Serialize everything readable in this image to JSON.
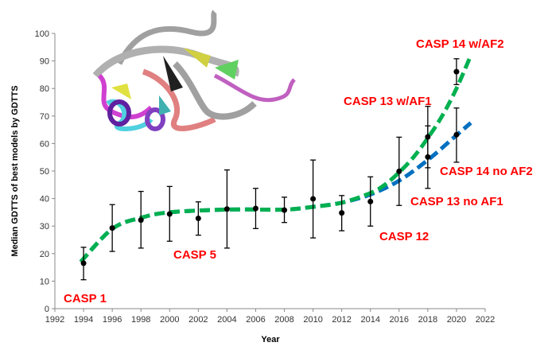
{
  "chart_data": {
    "type": "scatter",
    "title": "",
    "xlabel": "Year",
    "ylabel": "Median GDTTS of best models by GDTTS",
    "xlim": [
      1992,
      2022
    ],
    "ylim": [
      0,
      100
    ],
    "xticks": [
      1992,
      1994,
      1996,
      1998,
      2000,
      2002,
      2004,
      2006,
      2008,
      2010,
      2012,
      2014,
      2016,
      2018,
      2020,
      2022
    ],
    "yticks": [
      0,
      10,
      20,
      30,
      40,
      50,
      60,
      70,
      80,
      90,
      100
    ],
    "grid": false,
    "points": [
      {
        "x": 1994,
        "y": 16.5,
        "low": 10.5,
        "high": 22.3
      },
      {
        "x": 1996,
        "y": 29.3,
        "low": 20.8,
        "high": 37.8
      },
      {
        "x": 1998,
        "y": 32.2,
        "low": 22.0,
        "high": 42.6
      },
      {
        "x": 2000,
        "y": 34.4,
        "low": 24.5,
        "high": 44.4
      },
      {
        "x": 2002,
        "y": 32.8,
        "low": 26.7,
        "high": 38.8
      },
      {
        "x": 2004,
        "y": 36.2,
        "low": 22.0,
        "high": 50.4
      },
      {
        "x": 2006,
        "y": 36.4,
        "low": 29.1,
        "high": 43.7
      },
      {
        "x": 2008,
        "y": 35.8,
        "low": 31.3,
        "high": 40.5
      },
      {
        "x": 2010,
        "y": 39.9,
        "low": 25.7,
        "high": 54.0
      },
      {
        "x": 2012,
        "y": 34.8,
        "low": 28.3,
        "high": 41.1
      },
      {
        "x": 2014,
        "y": 38.9,
        "low": 30.0,
        "high": 47.9
      },
      {
        "x": 2016,
        "y": 49.9,
        "low": 37.5,
        "high": 62.3
      },
      {
        "x": 2018,
        "y": 62.4,
        "low": 51.2,
        "high": 73.5
      },
      {
        "x": 2018,
        "y": 55.1,
        "low": 43.7,
        "high": 66.4
      },
      {
        "x": 2020,
        "y": 86.1,
        "low": 81.4,
        "high": 90.8
      },
      {
        "x": 2020,
        "y": 63.2,
        "low": 53.2,
        "high": 72.9
      }
    ],
    "trendlines": [
      {
        "color": "#0070c0",
        "style": "dashed",
        "x": [
          1993.8,
          1996,
          1998,
          2000,
          2004,
          2008,
          2010,
          2012,
          2014,
          2016,
          2018,
          2020,
          2021
        ],
        "y": [
          17,
          29,
          33,
          35,
          36,
          36,
          37,
          38.5,
          41.5,
          46.5,
          54,
          63,
          67.5
        ]
      },
      {
        "color": "#00b050",
        "style": "dashed",
        "x": [
          1993.8,
          1996,
          1998,
          2000,
          2004,
          2008,
          2010,
          2012,
          2014,
          2015,
          2016,
          2017,
          2018,
          2019,
          2020,
          2021
        ],
        "y": [
          17,
          29,
          33,
          35,
          36,
          36,
          37,
          38.5,
          42,
          45,
          49.5,
          55,
          62,
          70,
          80,
          92
        ]
      }
    ],
    "annotations": [
      {
        "text": "CASP 1",
        "color": "#ff0000"
      },
      {
        "text": "CASP 5",
        "color": "#ff0000"
      },
      {
        "text": "CASP 12",
        "color": "#ff0000"
      },
      {
        "text": "CASP 13 no AF1",
        "color": "#ff0000"
      },
      {
        "text": "CASP 14 no AF2",
        "color": "#ff0000"
      },
      {
        "text": "CASP 13 w/AF1",
        "color": "#ff0000"
      },
      {
        "text": "CASP 14 w/AF2",
        "color": "#ff0000"
      }
    ]
  },
  "inset_image": {
    "icon": "protein-ribbon-structure"
  }
}
